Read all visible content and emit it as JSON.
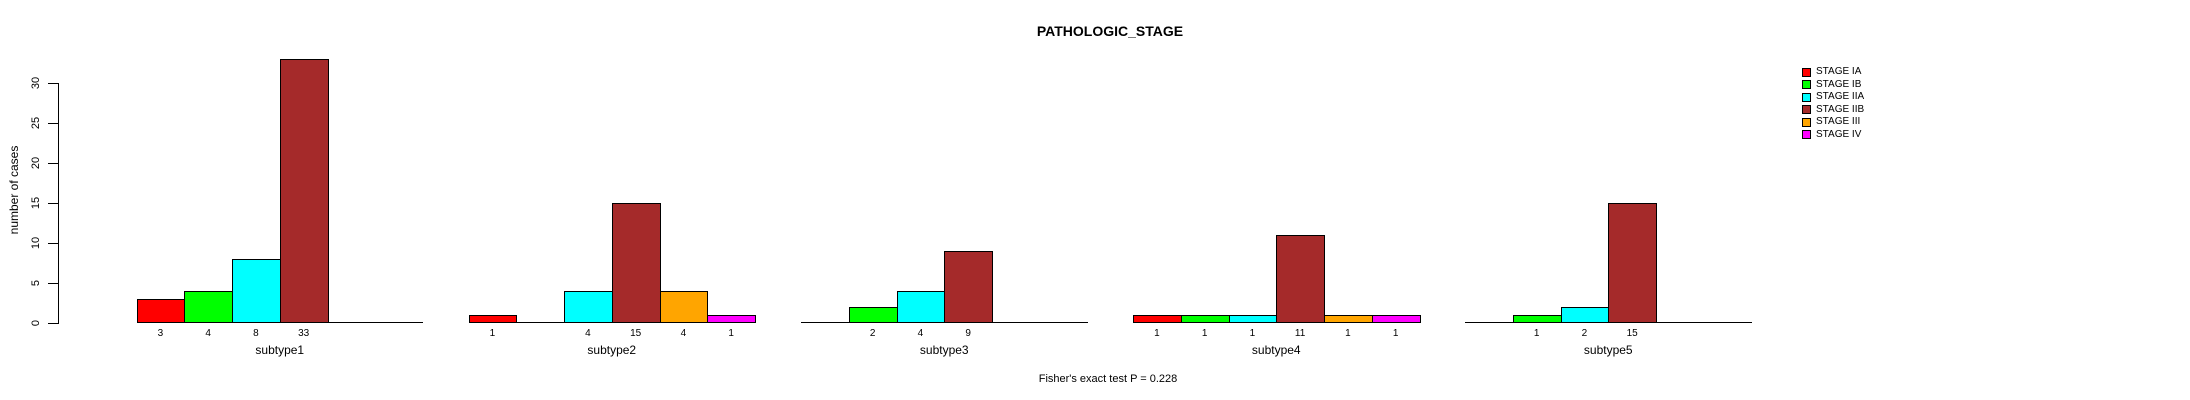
{
  "title": "PATHOLOGIC_STAGE",
  "y_axis_label": "number of cases",
  "footer": "Fisher's exact test P = 0.228",
  "legend": {
    "items": [
      {
        "label": "STAGE IA",
        "color": "#FF0000"
      },
      {
        "label": "STAGE IB",
        "color": "#00FF00"
      },
      {
        "label": "STAGE IIA",
        "color": "#00FFFF"
      },
      {
        "label": "STAGE IIB",
        "color": "#A52A2A"
      },
      {
        "label": "STAGE III",
        "color": "#FFA500"
      },
      {
        "label": "STAGE IV",
        "color": "#FF00FF"
      }
    ]
  },
  "chart_data": {
    "type": "bar",
    "title": "PATHOLOGIC_STAGE",
    "ylabel": "number of cases",
    "xlabel": "",
    "ylim": [
      0,
      33
    ],
    "yticks": [
      0,
      5,
      10,
      15,
      20,
      25,
      30
    ],
    "grid": false,
    "legend_position": "top-right",
    "annotation": "Fisher's exact test P = 0.228",
    "stages": [
      "STAGE IA",
      "STAGE IB",
      "STAGE IIA",
      "STAGE IIB",
      "STAGE III",
      "STAGE IV"
    ],
    "stage_colors": [
      "#FF0000",
      "#00FF00",
      "#00FFFF",
      "#A52A2A",
      "#FFA500",
      "#FF00FF"
    ],
    "categories": [
      "subtype1",
      "subtype2",
      "subtype3",
      "subtype4",
      "subtype5"
    ],
    "series": [
      {
        "name": "STAGE IA",
        "color": "#FF0000",
        "values": [
          3,
          1,
          0,
          1,
          0
        ]
      },
      {
        "name": "STAGE IB",
        "color": "#00FF00",
        "values": [
          4,
          0,
          2,
          1,
          1
        ]
      },
      {
        "name": "STAGE IIA",
        "color": "#00FFFF",
        "values": [
          8,
          4,
          4,
          1,
          2
        ]
      },
      {
        "name": "STAGE IIB",
        "color": "#A52A2A",
        "values": [
          33,
          15,
          9,
          11,
          15
        ]
      },
      {
        "name": "STAGE III",
        "color": "#FFA500",
        "values": [
          0,
          4,
          0,
          1,
          0
        ]
      },
      {
        "name": "STAGE IV",
        "color": "#FF00FF",
        "values": [
          0,
          1,
          0,
          1,
          0
        ]
      }
    ],
    "bar_value_labels_shown": true
  }
}
